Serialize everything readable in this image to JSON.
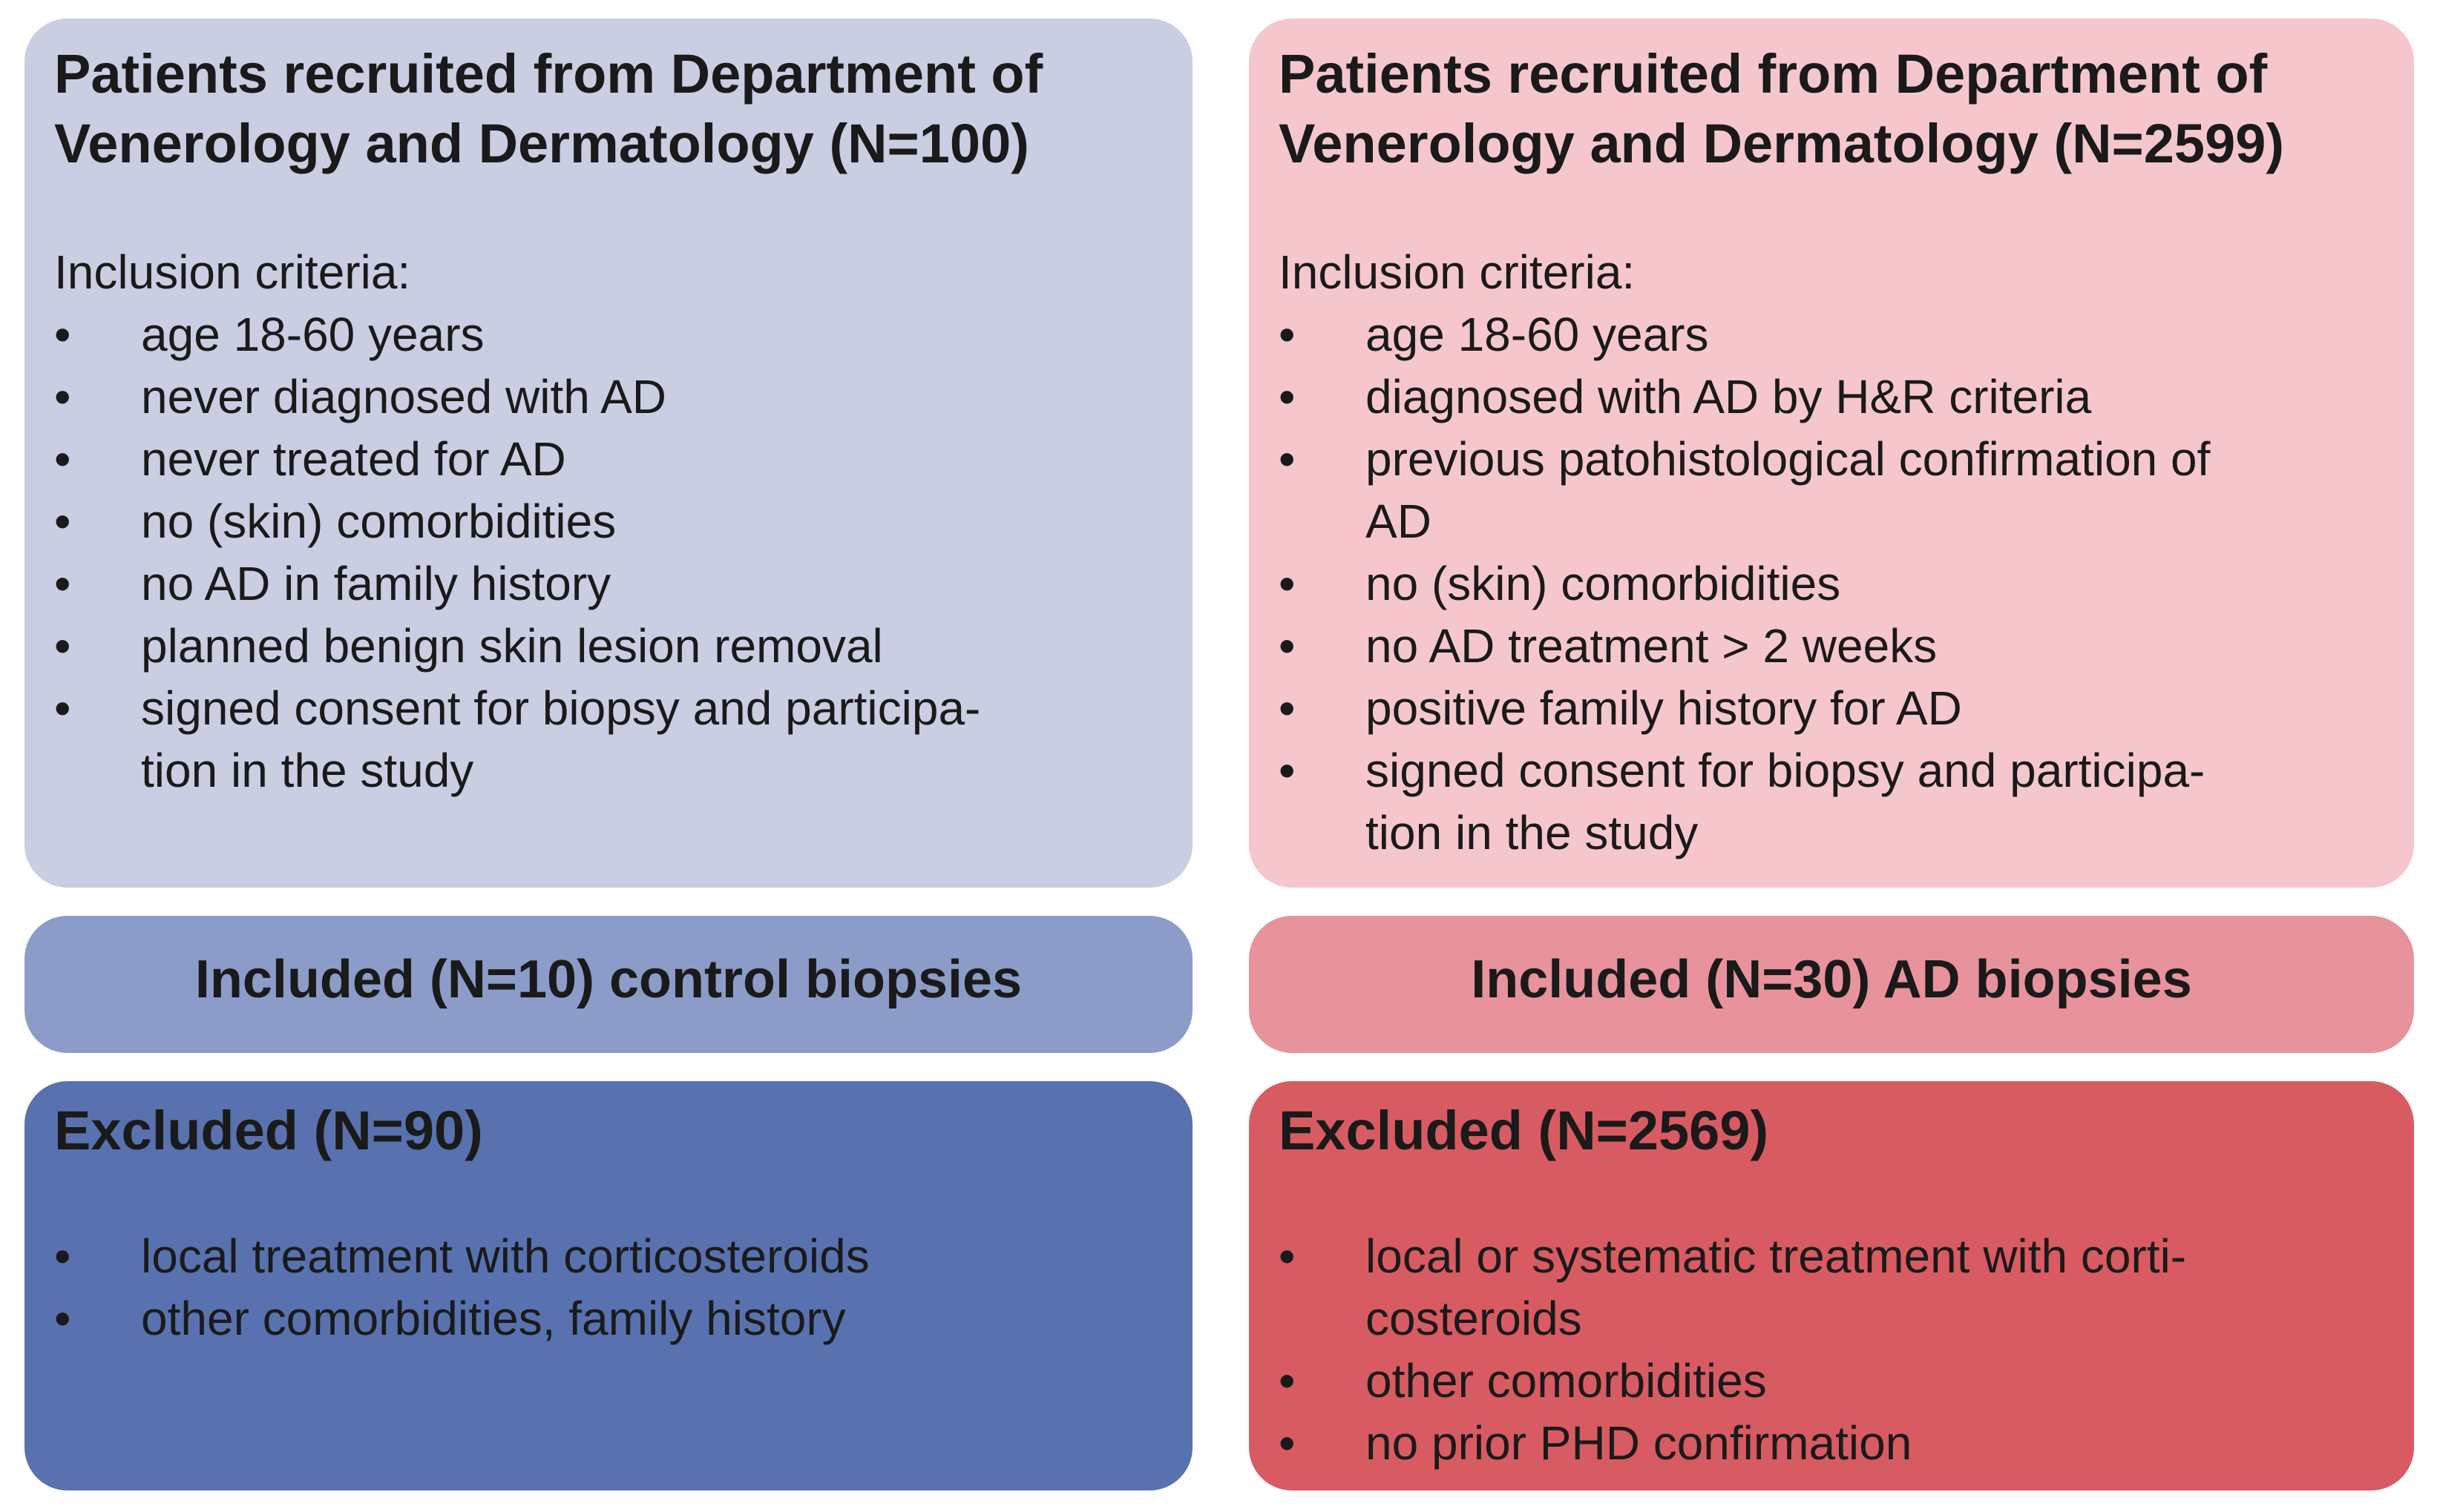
{
  "colors": {
    "control_light": "#c9cee3",
    "control_medium": "#8b9cc9",
    "control_dark": "#5872af",
    "ad_light": "#f5c7cc",
    "ad_medium": "#e8939c",
    "ad_dark": "#d95b62",
    "text": "#1a1a1a",
    "background": "#ffffff"
  },
  "left_column": {
    "recruited": {
      "title": "Patients recruited from Department of\nVenerology and Dermatology (N=100)",
      "criteria_label": "Inclusion criteria:",
      "criteria": [
        "age 18-60 years",
        "never diagnosed with AD",
        "never treated for AD",
        "no (skin) comorbidities",
        "no AD in family history",
        "planned benign skin lesion removal",
        "signed consent for biopsy and participa-\ntion in the study"
      ]
    },
    "included_label": "Included (N=10) control biopsies",
    "excluded": {
      "title": "Excluded (N=90)",
      "reasons": [
        "local treatment with corticosteroids",
        "other comorbidities, family history"
      ]
    }
  },
  "right_column": {
    "recruited": {
      "title": "Patients recruited from Department of\nVenerology and Dermatology (N=2599)",
      "criteria_label": "Inclusion criteria:",
      "criteria": [
        "age 18-60 years",
        "diagnosed with AD by H&R criteria",
        "previous patohistological confirmation of\nAD",
        "no (skin) comorbidities",
        "no AD treatment > 2 weeks",
        "positive family history for AD",
        "signed consent for biopsy and participa-\ntion in the study"
      ]
    },
    "included_label": "Included (N=30) AD biopsies",
    "excluded": {
      "title": "Excluded (N=2569)",
      "reasons": [
        "local or systematic treatment with corti-\ncosteroids",
        "other comorbidities",
        "no prior PHD confirmation"
      ]
    }
  }
}
